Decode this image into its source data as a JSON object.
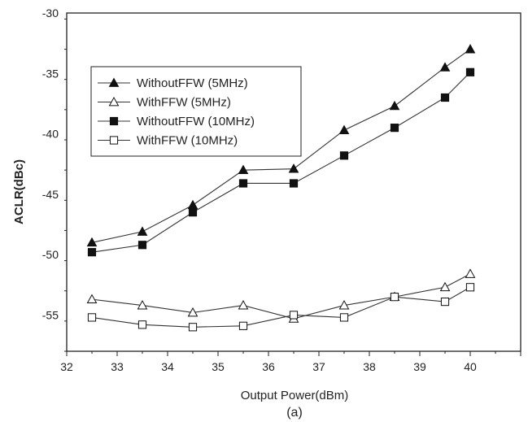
{
  "chart_data": {
    "type": "line",
    "title": "",
    "caption": "(a)",
    "xlabel": "Output Power(dBm)",
    "ylabel": "ACLR(dBc)",
    "xlim": [
      32,
      41
    ],
    "ylim": [
      -58,
      -30
    ],
    "xticks": [
      32,
      33,
      34,
      35,
      36,
      37,
      38,
      39,
      40
    ],
    "yticks": [
      -30,
      -35,
      -40,
      -45,
      -50,
      -55
    ],
    "grid": false,
    "legend_position": "top-left",
    "x": [
      32.5,
      33.5,
      34.5,
      35.5,
      36.5,
      37.5,
      38.5,
      39.5,
      40
    ],
    "series": [
      {
        "name": "WithoutFFW (5MHz)",
        "marker": "triangle-filled",
        "values": [
          -49.0,
          -48.1,
          -45.9,
          -43.0,
          -42.9,
          -39.7,
          -37.7,
          -34.5,
          -33.0
        ]
      },
      {
        "name": "WithFFW (5MHz)",
        "marker": "triangle-open",
        "values": [
          -53.7,
          -54.2,
          -54.8,
          -54.2,
          -55.3,
          -54.2,
          -53.5,
          -52.7,
          -51.6
        ]
      },
      {
        "name": "WithoutFFW (10MHz)",
        "marker": "square-filled",
        "values": [
          -49.8,
          -49.2,
          -46.5,
          -44.1,
          -44.1,
          -41.8,
          -39.5,
          -37.0,
          -34.9
        ]
      },
      {
        "name": "WithFFW (10MHz)",
        "marker": "square-open",
        "values": [
          -55.2,
          -55.8,
          -56.0,
          -55.9,
          -55.0,
          -55.2,
          -53.5,
          -53.9,
          -52.7
        ]
      }
    ]
  }
}
